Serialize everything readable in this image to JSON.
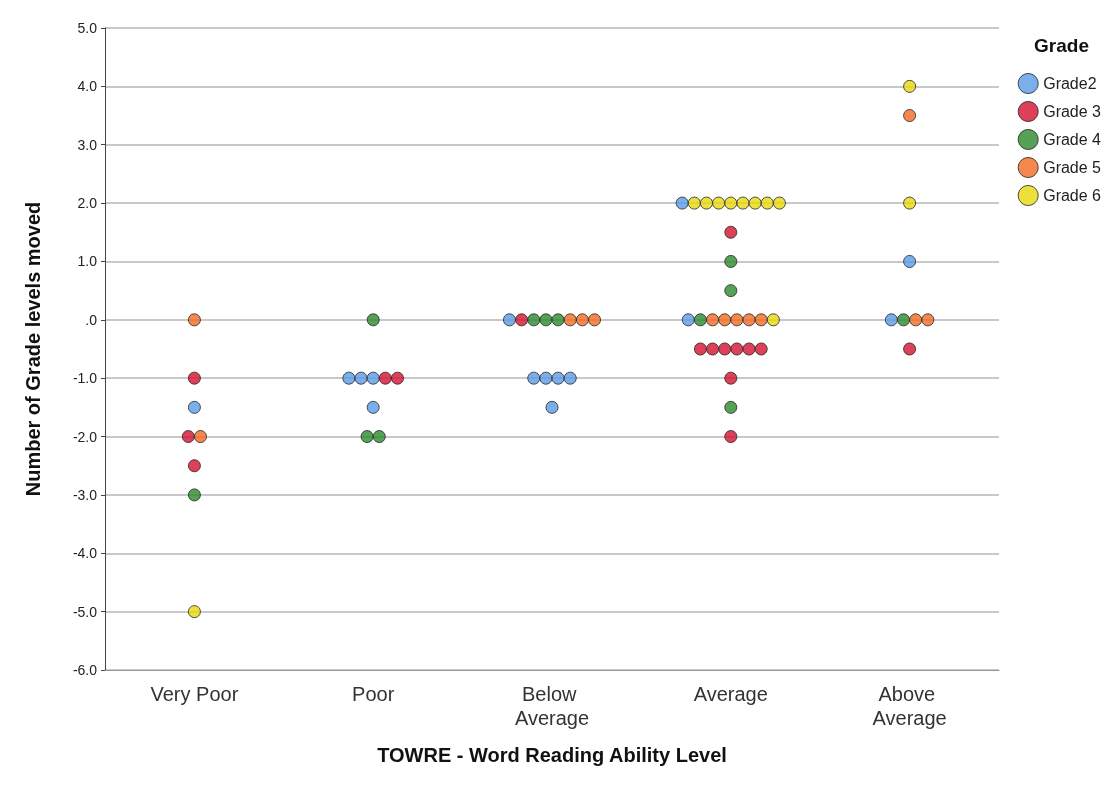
{
  "chart_data": {
    "type": "scatter",
    "xlabel": "TOWRE - Word Reading Ability Level",
    "ylabel": "Number of Grade levels moved",
    "legend_title": "Grade",
    "categories": [
      "Very Poor",
      "Poor",
      "Below Average",
      "Average",
      "Above Average"
    ],
    "ylim": [
      -6,
      5
    ],
    "yticks": [
      {
        "value": -6,
        "label": "-6.0"
      },
      {
        "value": -5,
        "label": "-5.0"
      },
      {
        "value": -4,
        "label": "-4.0"
      },
      {
        "value": -3,
        "label": "-3.0"
      },
      {
        "value": -2,
        "label": "-2.0"
      },
      {
        "value": -1,
        "label": "-1.0"
      },
      {
        "value": 0,
        "label": ".0"
      },
      {
        "value": 1,
        "label": "1.0"
      },
      {
        "value": 2,
        "label": "2.0"
      },
      {
        "value": 3,
        "label": "3.0"
      },
      {
        "value": 4,
        "label": "4.0"
      },
      {
        "value": 5,
        "label": "5.0"
      }
    ],
    "grid": "y",
    "legend": "top right",
    "marker": "circle",
    "series": [
      {
        "name": "Grade2",
        "color": "#5a9be6",
        "x": [
          "Very Poor",
          "Poor",
          "Poor",
          "Poor",
          "Poor",
          "Below Average",
          "Below Average",
          "Below Average",
          "Below Average",
          "Below Average",
          "Below Average",
          "Average",
          "Average",
          "Above Average",
          "Above Average"
        ],
        "values": [
          -1.5,
          -1,
          -1,
          -1,
          -1.5,
          0,
          -1,
          -1,
          -1,
          -1,
          -1.5,
          2,
          0,
          1,
          0
        ]
      },
      {
        "name": "Grade 3",
        "color": "#d4112f",
        "x": [
          "Very Poor",
          "Very Poor",
          "Very Poor",
          "Poor",
          "Poor",
          "Below Average",
          "Average",
          "Average",
          "Average",
          "Average",
          "Average",
          "Average",
          "Average",
          "Average",
          "Average",
          "Above Average"
        ],
        "values": [
          -1,
          -2,
          -2.5,
          -1,
          -1,
          0,
          1.5,
          -0.5,
          -0.5,
          -0.5,
          -0.5,
          -0.5,
          -0.5,
          -1,
          -2,
          -0.5
        ]
      },
      {
        "name": "Grade 4",
        "color": "#2b8a2b",
        "x": [
          "Very Poor",
          "Poor",
          "Poor",
          "Poor",
          "Below Average",
          "Below Average",
          "Below Average",
          "Average",
          "Average",
          "Average",
          "Average",
          "Above Average"
        ],
        "values": [
          -3,
          0,
          -2,
          -2,
          0,
          0,
          0,
          1,
          0.5,
          0,
          -1.5,
          0
        ]
      },
      {
        "name": "Grade 5",
        "color": "#f26b21",
        "x": [
          "Very Poor",
          "Very Poor",
          "Below Average",
          "Below Average",
          "Below Average",
          "Average",
          "Average",
          "Average",
          "Average",
          "Average",
          "Above Average",
          "Above Average",
          "Above Average"
        ],
        "values": [
          0,
          -2,
          0,
          0,
          0,
          0,
          0,
          0,
          0,
          0,
          3.5,
          0,
          0
        ]
      },
      {
        "name": "Grade 6",
        "color": "#e8d80c",
        "x": [
          "Very Poor",
          "Average",
          "Average",
          "Average",
          "Average",
          "Average",
          "Average",
          "Average",
          "Average",
          "Average",
          "Above Average",
          "Above Average"
        ],
        "values": [
          -5,
          2,
          2,
          2,
          2,
          2,
          2,
          2,
          2,
          0,
          4,
          2
        ]
      }
    ]
  }
}
